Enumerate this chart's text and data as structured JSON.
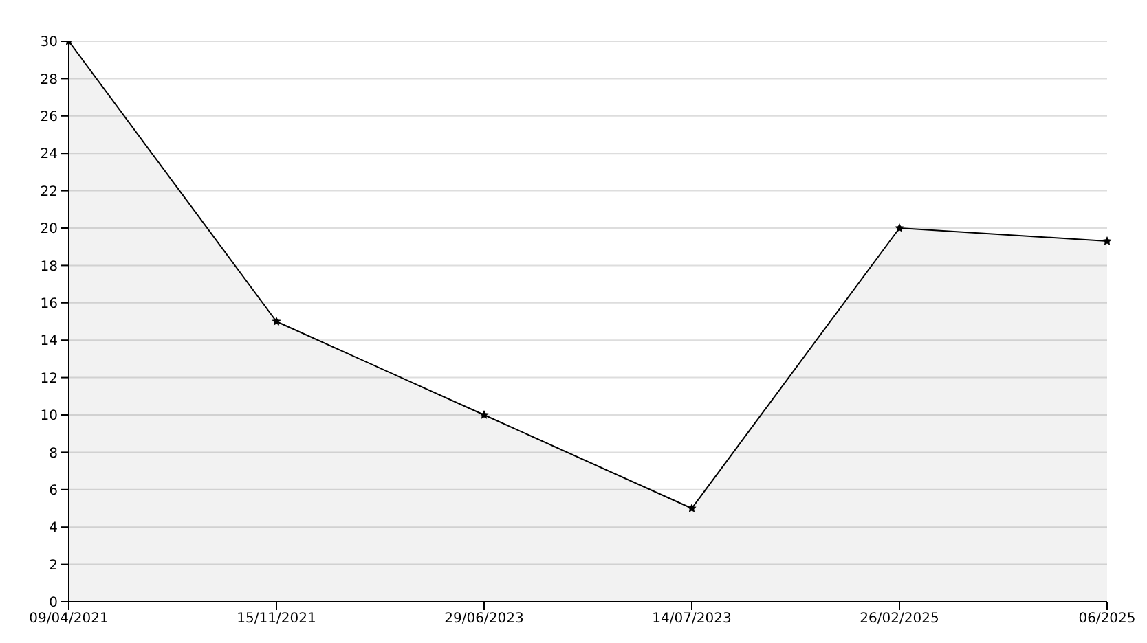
{
  "chart_data": {
    "type": "area",
    "categories": [
      "09/04/2021",
      "15/11/2021",
      "29/06/2023",
      "14/07/2023",
      "26/02/2025",
      "06/2025"
    ],
    "series": [
      {
        "color": "#000000",
        "values": [
          30,
          15,
          10,
          5,
          20,
          19.3
        ]
      }
    ],
    "ylim": [
      0,
      30
    ],
    "yticks": [
      0,
      2,
      4,
      6,
      8,
      10,
      12,
      14,
      16,
      18,
      20,
      22,
      24,
      26,
      28,
      30
    ],
    "grid": "y",
    "marker": "star",
    "line_style": "solid"
  }
}
